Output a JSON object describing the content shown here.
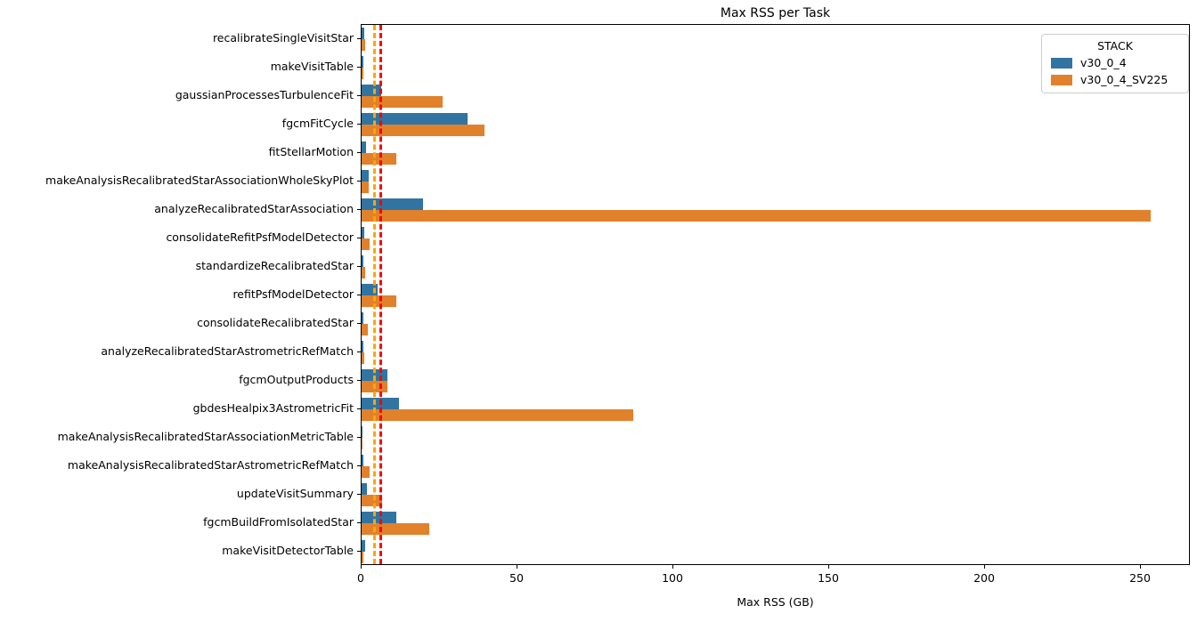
{
  "title": "Max RSS per Task",
  "chart_data": {
    "type": "bar",
    "orientation": "horizontal",
    "title": "Max RSS per Task",
    "xlabel": "Max RSS (GB)",
    "ylabel": "",
    "xlim": [
      0,
      266
    ],
    "xticks": [
      0,
      50,
      100,
      150,
      200,
      250
    ],
    "grid": false,
    "legend": {
      "title": "STACK",
      "position": "upper right"
    },
    "categories": [
      "recalibrateSingleVisitStar",
      "makeVisitTable",
      "gaussianProcessesTurbulenceFit",
      "fgcmFitCycle",
      "fitStellarMotion",
      "makeAnalysisRecalibratedStarAssociationWholeSkyPlot",
      "analyzeRecalibratedStarAssociation",
      "consolidateRefitPsfModelDetector",
      "standardizeRecalibratedStar",
      "refitPsfModelDetector",
      "consolidateRecalibratedStar",
      "analyzeRecalibratedStarAstrometricRefMatch",
      "fgcmOutputProducts",
      "gbdesHealpix3AstrometricFit",
      "makeAnalysisRecalibratedStarAssociationMetricTable",
      "makeAnalysisRecalibratedStarAstrometricRefMatch",
      "updateVisitSummary",
      "fgcmBuildFromIsolatedStar",
      "makeVisitDetectorTable"
    ],
    "series": [
      {
        "name": "v30_0_4",
        "color": "#3274a1",
        "values": [
          0.9,
          0.5,
          6.4,
          34.0,
          1.4,
          2.3,
          19.7,
          0.9,
          0.7,
          5.2,
          0.7,
          0.7,
          8.4,
          11.9,
          0.3,
          0.7,
          1.6,
          11.2,
          1.0
        ]
      },
      {
        "name": "v30_0_4_SV225",
        "color": "#e1812c",
        "values": [
          1.2,
          0.7,
          26.0,
          39.5,
          11.0,
          2.2,
          253.0,
          2.5,
          1.0,
          11.0,
          2.1,
          0.8,
          8.2,
          87.0,
          0.3,
          2.6,
          6.7,
          21.6,
          0.6
        ]
      }
    ],
    "vlines": [
      {
        "x": 4,
        "color": "#ffa500",
        "style": "dashed"
      },
      {
        "x": 6,
        "color": "#ff0000",
        "style": "dashed"
      }
    ]
  }
}
